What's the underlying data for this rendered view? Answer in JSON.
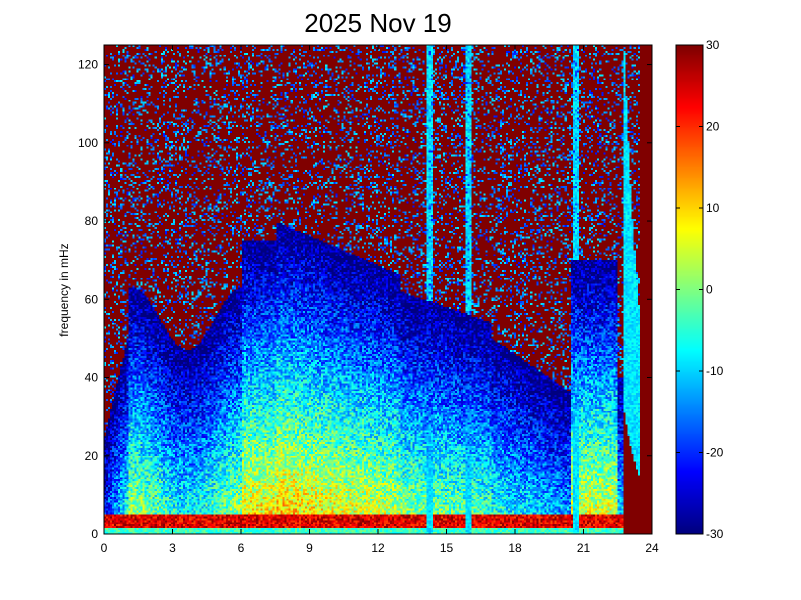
{
  "chart_data": {
    "type": "heatmap",
    "title": "2025 Nov 19",
    "xlabel": "",
    "ylabel": "frequency in mHz",
    "xlim": [
      0,
      24
    ],
    "ylim": [
      0,
      125
    ],
    "x_ticks": [
      "0",
      "3",
      "6",
      "9",
      "12",
      "15",
      "18",
      "21",
      "24"
    ],
    "y_ticks": [
      "0",
      "20",
      "40",
      "60",
      "80",
      "100",
      "120"
    ],
    "colorbar": {
      "colormap": "jet",
      "clim": [
        -30,
        30
      ],
      "ticks": [
        "30",
        "20",
        "10",
        "0",
        "-10",
        "-20",
        "-30"
      ]
    },
    "grid": false,
    "description_features": {
      "low_frequency_band_mHz": [
        0,
        5
      ],
      "bright_vertical_streaks_hours": [
        14.3,
        16.0,
        20.7,
        23.0
      ],
      "strongest_event_hour": 23.3
    }
  }
}
